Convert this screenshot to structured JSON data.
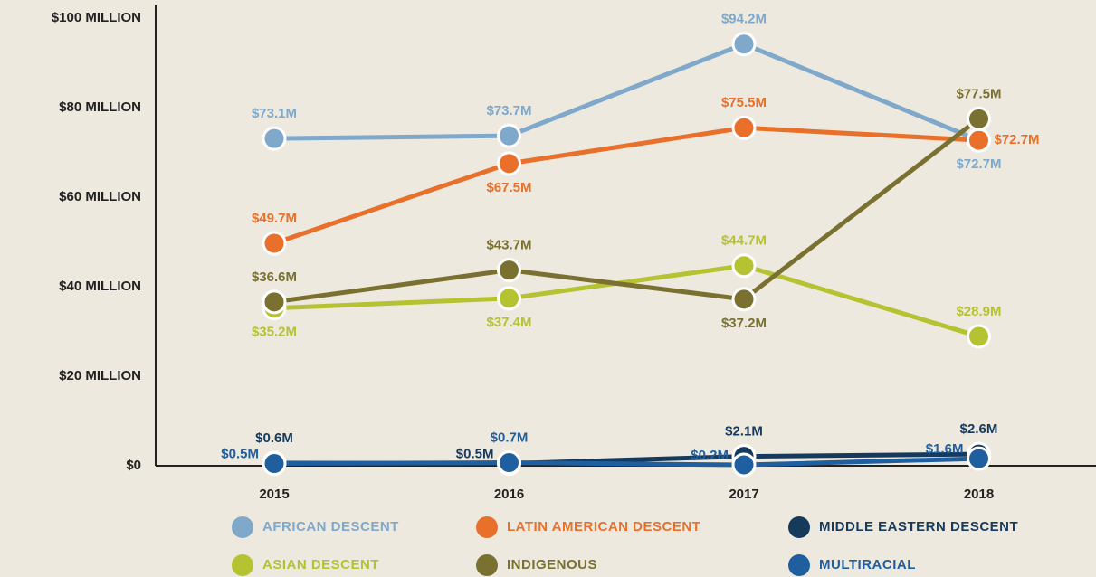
{
  "chart_data": {
    "type": "line",
    "categories": [
      "2015",
      "2016",
      "2017",
      "2018"
    ],
    "ylim": [
      0,
      100
    ],
    "yticks": [
      {
        "value": 0,
        "label": "$0"
      },
      {
        "value": 20,
        "label": "$20 MILLION"
      },
      {
        "value": 40,
        "label": "$40 MILLION"
      },
      {
        "value": 60,
        "label": "$60 MILLION"
      },
      {
        "value": 80,
        "label": "$80 MILLION"
      },
      {
        "value": 100,
        "label": "$100 MILLION"
      }
    ],
    "series": [
      {
        "name": "AFRICAN DESCENT",
        "color": "#7fa8cb",
        "values": [
          73.1,
          73.7,
          94.2,
          72.7
        ],
        "value_labels": [
          "$73.1M",
          "$73.7M",
          "$94.2M",
          "$72.7M"
        ]
      },
      {
        "name": "LATIN AMERICAN DESCENT",
        "color": "#e8702a",
        "values": [
          49.7,
          67.5,
          75.5,
          72.7
        ],
        "value_labels": [
          "$49.7M",
          "$67.5M",
          "$75.5M",
          "$72.7M"
        ]
      },
      {
        "name": "MIDDLE EASTERN DESCENT",
        "color": "#163a5c",
        "values": [
          0.6,
          0.5,
          2.1,
          2.6
        ],
        "value_labels": [
          "$0.6M",
          "$0.5M",
          "$2.1M",
          "$2.6M"
        ]
      },
      {
        "name": "ASIAN DESCENT",
        "color": "#b5c232",
        "values": [
          35.2,
          37.4,
          44.7,
          28.9
        ],
        "value_labels": [
          "$35.2M",
          "$37.4M",
          "$44.7M",
          "$28.9M"
        ]
      },
      {
        "name": "INDIGENOUS",
        "color": "#7a7030",
        "values": [
          36.6,
          43.7,
          37.2,
          77.5
        ],
        "value_labels": [
          "$36.6M",
          "$43.7M",
          "$37.2M",
          "$77.5M"
        ]
      },
      {
        "name": "MULTIRACIAL",
        "color": "#1f5fa0",
        "values": [
          0.5,
          0.7,
          0.2,
          1.6
        ],
        "value_labels": [
          "$0.5M",
          "$0.7M",
          "$0.2M",
          "$1.6M"
        ]
      }
    ]
  }
}
